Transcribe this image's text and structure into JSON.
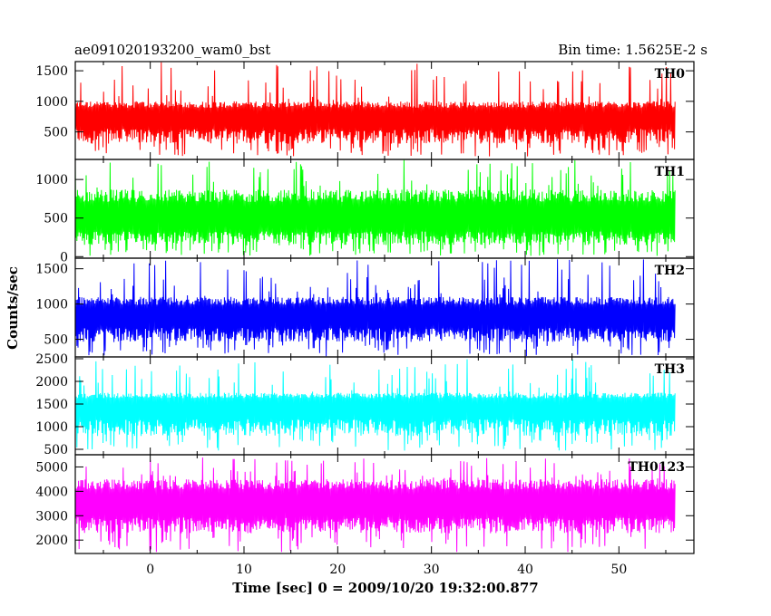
{
  "header": {
    "left_title": "ae091020193200_wam0_bst",
    "right_title": "Bin time: 1.5625E-2 s"
  },
  "chart_data": {
    "type": "line",
    "xlabel": "Time [sec] 0 = 2009/10/20 19:32:00.877",
    "ylabel": "Counts/sec",
    "xlim": [
      -8,
      58
    ],
    "xticks": [
      0,
      10,
      20,
      30,
      40,
      50
    ],
    "x_data_range": [
      -8,
      56
    ],
    "grid": false,
    "panels": [
      {
        "name": "TH0",
        "color": "#ff0000",
        "ylim": [
          50,
          1650
        ],
        "yticks": [
          500,
          1000,
          1500
        ],
        "series": {
          "low_min": 100,
          "low_max": 260,
          "high_min": 1000,
          "high_max": 1650,
          "mean": 740
        }
      },
      {
        "name": "TH1",
        "color": "#00ff00",
        "ylim": [
          -20,
          1260
        ],
        "yticks": [
          0,
          500,
          1000
        ],
        "series": {
          "low_min": 10,
          "low_max": 110,
          "high_min": 870,
          "high_max": 1260,
          "mean": 470
        }
      },
      {
        "name": "TH2",
        "color": "#0000ff",
        "ylim": [
          250,
          1650
        ],
        "yticks": [
          500,
          1000,
          1500
        ],
        "series": {
          "low_min": 260,
          "low_max": 420,
          "high_min": 1100,
          "high_max": 1650,
          "mean": 820
        }
      },
      {
        "name": "TH3",
        "color": "#00ffff",
        "ylim": [
          380,
          2540
        ],
        "yticks": [
          500,
          1000,
          1500,
          2000,
          2500
        ],
        "series": {
          "low_min": 470,
          "low_max": 720,
          "high_min": 1750,
          "high_max": 2500,
          "mean": 1450
        }
      },
      {
        "name": "TH0123",
        "color": "#ff00ff",
        "ylim": [
          1450,
          5500
        ],
        "yticks": [
          2000,
          3000,
          4000,
          5000
        ],
        "series": {
          "low_min": 1500,
          "low_max": 2150,
          "high_min": 4500,
          "high_max": 5400,
          "mean": 3450
        }
      }
    ]
  }
}
